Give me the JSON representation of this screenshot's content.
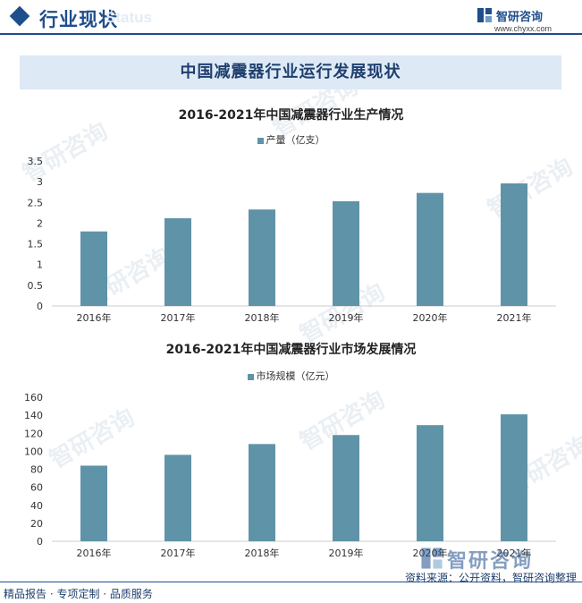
{
  "header": {
    "title": "行业现状",
    "ghost_text": "Status",
    "brand_name": "智研咨询",
    "brand_url": "www.chyxx.com"
  },
  "banner": {
    "title": "中国减震器行业运行发展现状"
  },
  "watermark": {
    "text": "智研咨询"
  },
  "colors": {
    "bar": "#5f93a8",
    "brand": "#1f4e8c",
    "banner_bg": "#dde9f4"
  },
  "chart_data": [
    {
      "type": "bar",
      "title": "2016-2021年中国减震器行业生产情况",
      "categories": [
        "2016年",
        "2017年",
        "2018年",
        "2019年",
        "2020年",
        "2021年"
      ],
      "series": [
        {
          "name": "产量（亿支）",
          "values": [
            1.8,
            2.12,
            2.33,
            2.53,
            2.73,
            2.96
          ]
        }
      ],
      "yticks": [
        "0",
        "0.5",
        "1",
        "1.5",
        "2",
        "2.5",
        "3",
        "3.5"
      ],
      "ylim": [
        0,
        3.5
      ]
    },
    {
      "type": "bar",
      "title": "2016-2021年中国减震器行业市场发展情况",
      "categories": [
        "2016年",
        "2017年",
        "2018年",
        "2019年",
        "2020年",
        "2021年"
      ],
      "series": [
        {
          "name": "市场规模（亿元）",
          "values": [
            84,
            96,
            108,
            118,
            129,
            141
          ]
        }
      ],
      "yticks": [
        "0",
        "20",
        "40",
        "60",
        "80",
        "100",
        "120",
        "140",
        "160"
      ],
      "ylim": [
        0,
        160
      ]
    }
  ],
  "footer": {
    "left": "精品报告 · 专项定制 · 品质服务",
    "source": "资料来源：公开资料，智研咨询整理"
  }
}
